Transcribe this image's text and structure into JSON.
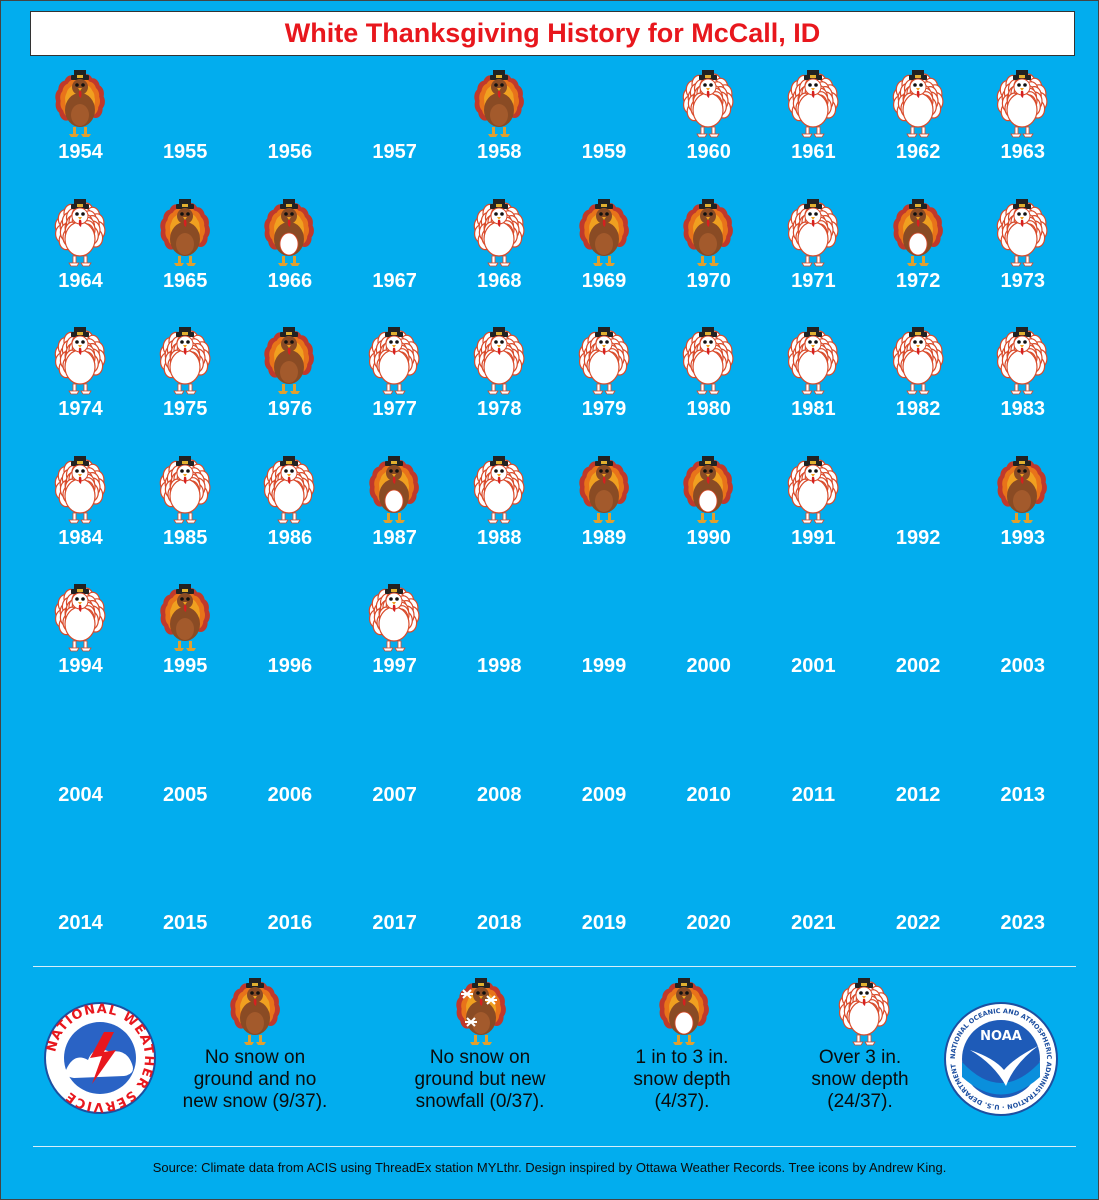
{
  "title": "White Thanksgiving History for McCall, ID",
  "colors": {
    "background": "#02adee",
    "title": "#e8171d",
    "year_text": "#ffffff"
  },
  "years": [
    {
      "year": "1954",
      "category": "none"
    },
    {
      "year": "1955",
      "category": "missing"
    },
    {
      "year": "1956",
      "category": "missing"
    },
    {
      "year": "1957",
      "category": "missing"
    },
    {
      "year": "1958",
      "category": "none"
    },
    {
      "year": "1959",
      "category": "missing"
    },
    {
      "year": "1960",
      "category": "over3"
    },
    {
      "year": "1961",
      "category": "over3"
    },
    {
      "year": "1962",
      "category": "over3"
    },
    {
      "year": "1963",
      "category": "over3"
    },
    {
      "year": "1964",
      "category": "over3"
    },
    {
      "year": "1965",
      "category": "none"
    },
    {
      "year": "1966",
      "category": "1to3"
    },
    {
      "year": "1967",
      "category": "missing"
    },
    {
      "year": "1968",
      "category": "over3"
    },
    {
      "year": "1969",
      "category": "none"
    },
    {
      "year": "1970",
      "category": "none"
    },
    {
      "year": "1971",
      "category": "over3"
    },
    {
      "year": "1972",
      "category": "1to3"
    },
    {
      "year": "1973",
      "category": "over3"
    },
    {
      "year": "1974",
      "category": "over3"
    },
    {
      "year": "1975",
      "category": "over3"
    },
    {
      "year": "1976",
      "category": "none"
    },
    {
      "year": "1977",
      "category": "over3"
    },
    {
      "year": "1978",
      "category": "over3"
    },
    {
      "year": "1979",
      "category": "over3"
    },
    {
      "year": "1980",
      "category": "over3"
    },
    {
      "year": "1981",
      "category": "over3"
    },
    {
      "year": "1982",
      "category": "over3"
    },
    {
      "year": "1983",
      "category": "over3"
    },
    {
      "year": "1984",
      "category": "over3"
    },
    {
      "year": "1985",
      "category": "over3"
    },
    {
      "year": "1986",
      "category": "over3"
    },
    {
      "year": "1987",
      "category": "1to3"
    },
    {
      "year": "1988",
      "category": "over3"
    },
    {
      "year": "1989",
      "category": "none"
    },
    {
      "year": "1990",
      "category": "1to3"
    },
    {
      "year": "1991",
      "category": "over3"
    },
    {
      "year": "1992",
      "category": "missing"
    },
    {
      "year": "1993",
      "category": "none"
    },
    {
      "year": "1994",
      "category": "over3"
    },
    {
      "year": "1995",
      "category": "none"
    },
    {
      "year": "1996",
      "category": "missing"
    },
    {
      "year": "1997",
      "category": "over3"
    },
    {
      "year": "1998",
      "category": "missing"
    },
    {
      "year": "1999",
      "category": "missing"
    },
    {
      "year": "2000",
      "category": "missing"
    },
    {
      "year": "2001",
      "category": "missing"
    },
    {
      "year": "2002",
      "category": "missing"
    },
    {
      "year": "2003",
      "category": "missing"
    },
    {
      "year": "2004",
      "category": "missing"
    },
    {
      "year": "2005",
      "category": "missing"
    },
    {
      "year": "2006",
      "category": "missing"
    },
    {
      "year": "2007",
      "category": "missing"
    },
    {
      "year": "2008",
      "category": "missing"
    },
    {
      "year": "2009",
      "category": "missing"
    },
    {
      "year": "2010",
      "category": "missing"
    },
    {
      "year": "2011",
      "category": "missing"
    },
    {
      "year": "2012",
      "category": "missing"
    },
    {
      "year": "2013",
      "category": "missing"
    },
    {
      "year": "2014",
      "category": "missing"
    },
    {
      "year": "2015",
      "category": "missing"
    },
    {
      "year": "2016",
      "category": "missing"
    },
    {
      "year": "2017",
      "category": "missing"
    },
    {
      "year": "2018",
      "category": "missing"
    },
    {
      "year": "2019",
      "category": "missing"
    },
    {
      "year": "2020",
      "category": "missing"
    },
    {
      "year": "2021",
      "category": "missing"
    },
    {
      "year": "2022",
      "category": "missing"
    },
    {
      "year": "2023",
      "category": "missing"
    }
  ],
  "legend": [
    {
      "category": "none",
      "icon": "brown-turkey-icon",
      "text": "No snow on\nground and no\nnew snow (9/37)."
    },
    {
      "category": "snowfall",
      "icon": "snowflake-turkey-icon",
      "text": "No snow on\nground but new\nsnowfall (0/37)."
    },
    {
      "category": "1to3",
      "icon": "half-white-turkey-icon",
      "text": "1 in to 3 in.\nsnow depth\n(4/37)."
    },
    {
      "category": "over3",
      "icon": "white-turkey-icon",
      "text": "Over 3 in.\nsnow depth\n(24/37)."
    }
  ],
  "logos": {
    "nws": {
      "icon": "nws-logo-icon",
      "text": "NATIONAL WEATHER SERVICE"
    },
    "noaa": {
      "icon": "noaa-logo-icon",
      "text": "NOAA",
      "ring_text": "NATIONAL OCEANIC AND ATMOSPHERIC ADMINISTRATION · U.S. DEPARTMENT OF COMMERCE"
    }
  },
  "source": "Source: Climate data from ACIS using ThreadEx station MYLthr. Design inspired by Ottawa Weather Records. Tree icons by Andrew King."
}
